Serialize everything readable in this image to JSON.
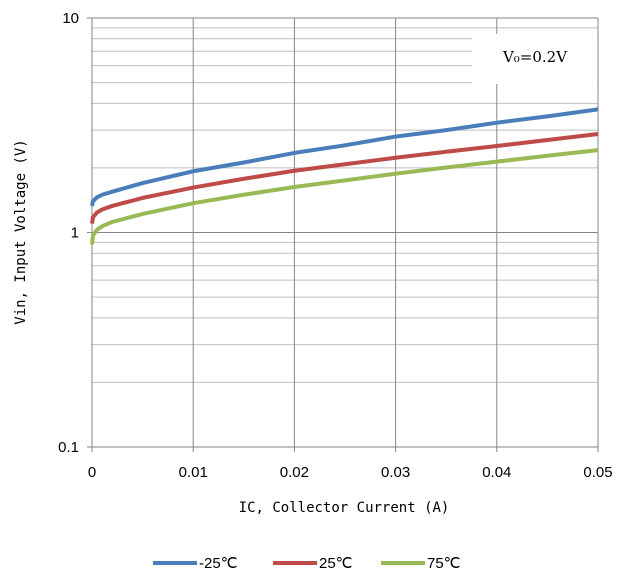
{
  "chart_data": {
    "type": "line",
    "title": "",
    "xlabel": "IC, Collector Current (A)",
    "ylabel": "Vin, Input Voltage (V)",
    "xlim": [
      0,
      0.05
    ],
    "ylim": [
      0.1,
      10
    ],
    "y_scale": "log",
    "x_ticks": [
      "0",
      "0.01",
      "0.02",
      "0.03",
      "0.04",
      "0.05"
    ],
    "y_ticks": [
      "0.1",
      "1",
      "10"
    ],
    "grid": true,
    "legend_position": "bottom",
    "annotation": "V₀=0.2V",
    "series": [
      {
        "name": "-25℃",
        "color": "#4A7EBB",
        "x": [
          0,
          0.0001,
          0.0005,
          0.001,
          0.002,
          0.005,
          0.01,
          0.015,
          0.02,
          0.025,
          0.03,
          0.035,
          0.04,
          0.045,
          0.05
        ],
        "y": [
          1.33,
          1.4,
          1.46,
          1.5,
          1.55,
          1.7,
          1.93,
          2.12,
          2.35,
          2.55,
          2.8,
          3.0,
          3.25,
          3.48,
          3.75
        ]
      },
      {
        "name": "25℃",
        "color": "#BE4B48",
        "x": [
          0,
          0.0001,
          0.0005,
          0.001,
          0.002,
          0.005,
          0.01,
          0.015,
          0.02,
          0.025,
          0.03,
          0.035,
          0.04,
          0.045,
          0.05
        ],
        "y": [
          1.1,
          1.18,
          1.24,
          1.28,
          1.33,
          1.45,
          1.62,
          1.78,
          1.94,
          2.08,
          2.23,
          2.38,
          2.53,
          2.7,
          2.88
        ]
      },
      {
        "name": "75℃",
        "color": "#98B954",
        "x": [
          0,
          0.0001,
          0.0005,
          0.001,
          0.002,
          0.005,
          0.01,
          0.015,
          0.02,
          0.025,
          0.03,
          0.035,
          0.04,
          0.045,
          0.05
        ],
        "y": [
          0.88,
          0.97,
          1.03,
          1.07,
          1.12,
          1.22,
          1.37,
          1.5,
          1.63,
          1.75,
          1.88,
          2.01,
          2.14,
          2.28,
          2.42
        ]
      }
    ]
  }
}
